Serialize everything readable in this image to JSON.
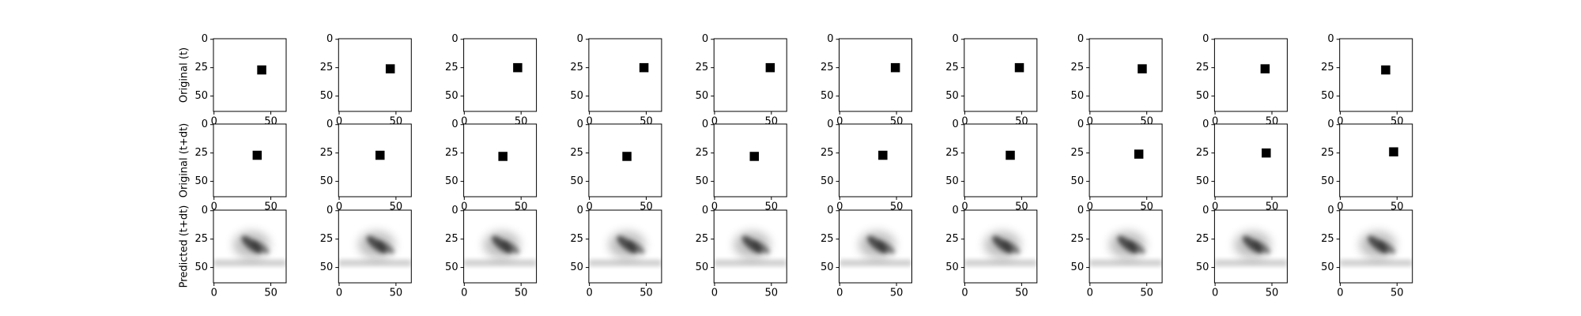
{
  "chart_data": [
    {
      "type": "image",
      "ylabel": "Original (t)",
      "x": [
        42,
        45,
        47,
        48,
        49,
        49,
        48,
        46,
        44,
        40
      ],
      "y": [
        27,
        26,
        25,
        25,
        25,
        25,
        25,
        26,
        26,
        27
      ],
      "square_size": 8,
      "color": "#000000",
      "xlim": [
        -0.5,
        63.5
      ],
      "ylim": [
        63.5,
        -0.5
      ],
      "xticks": [
        0,
        50
      ],
      "yticks": [
        0,
        25,
        50
      ]
    },
    {
      "type": "image",
      "ylabel": "Original (t+dt)",
      "x": [
        38,
        36,
        34,
        33,
        35,
        38,
        40,
        43,
        45,
        47
      ],
      "y": [
        27,
        27,
        28,
        28,
        28,
        27,
        27,
        26,
        25,
        24
      ],
      "square_size": 8,
      "color": "#000000",
      "xlim": [
        -0.5,
        63.5
      ],
      "ylim": [
        63.5,
        -0.5
      ],
      "xticks": [
        0,
        50
      ],
      "yticks": [
        0,
        25,
        50
      ]
    },
    {
      "type": "blur",
      "ylabel": "Predicted (t+dt)",
      "x": [
        33,
        33,
        33,
        33,
        33,
        33,
        33,
        33,
        33,
        33
      ],
      "y": [
        30,
        30,
        30,
        30,
        30,
        30,
        30,
        30,
        30,
        30
      ],
      "color": "#000000",
      "xlim": [
        -0.5,
        63.5
      ],
      "ylim": [
        63.5,
        -0.5
      ],
      "xticks": [
        0,
        50
      ],
      "yticks": [
        0,
        25,
        50
      ]
    }
  ]
}
